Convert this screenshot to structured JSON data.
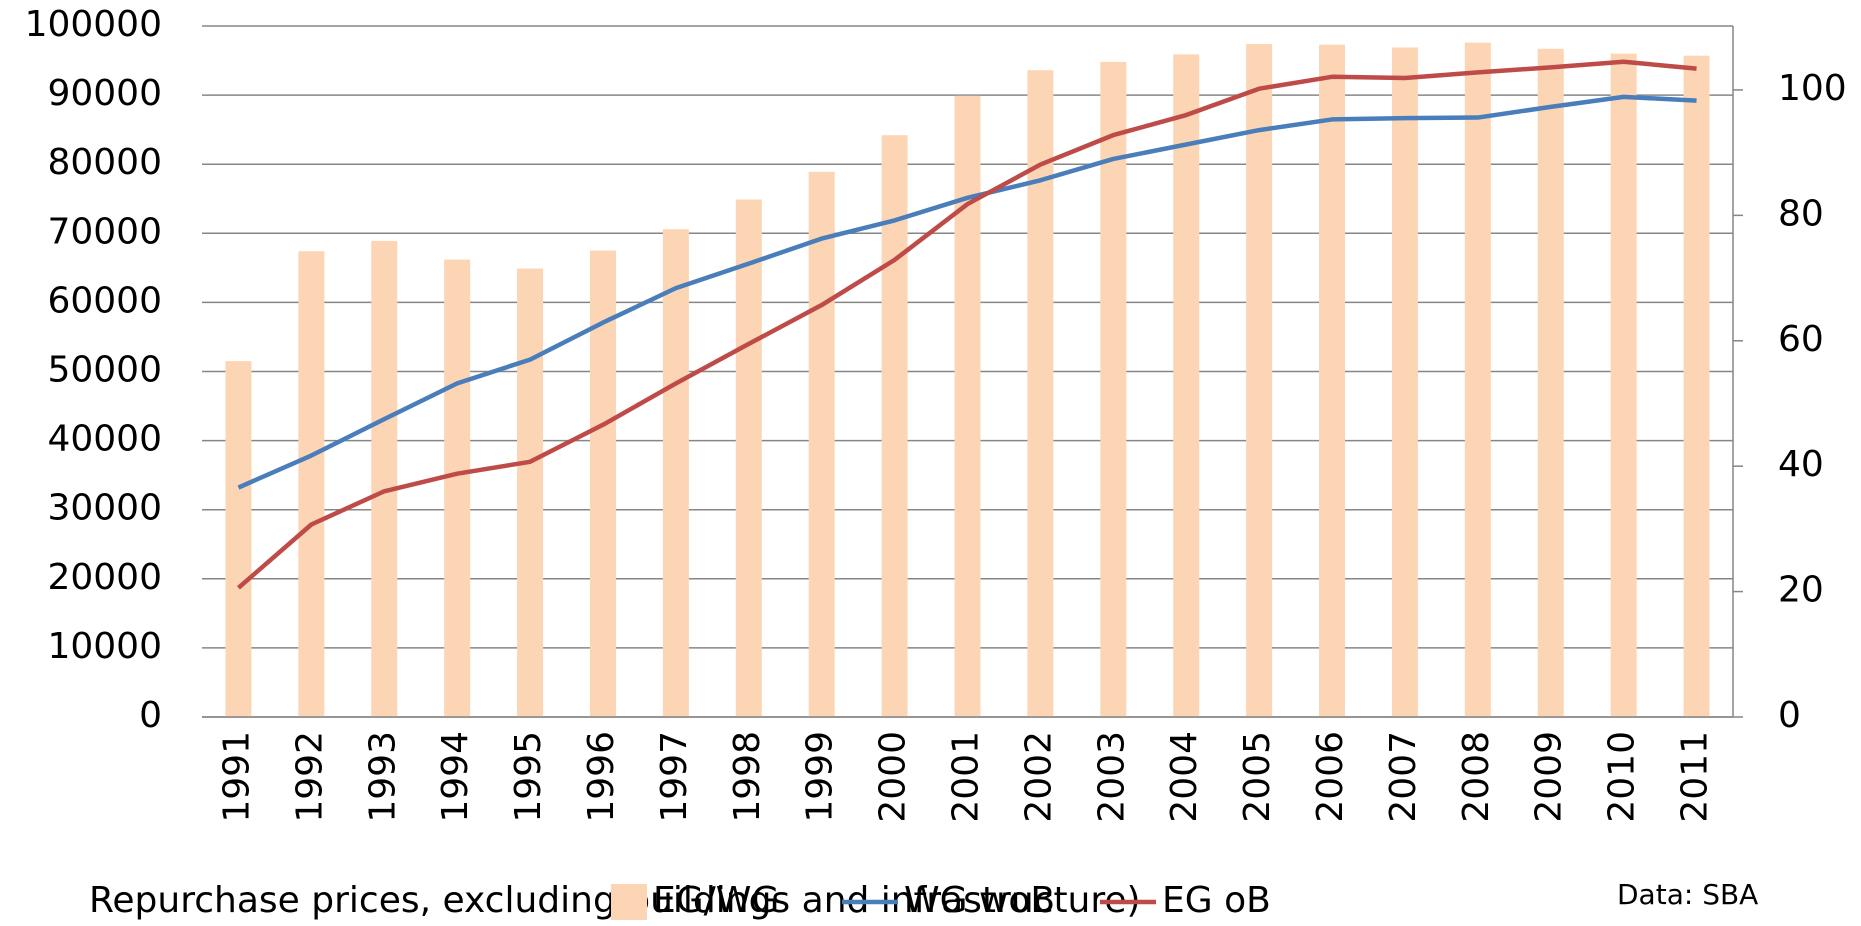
{
  "chart_data": {
    "type": "bar",
    "categories": [
      "1991",
      "1992",
      "1993",
      "1994",
      "1995",
      "1996",
      "1997",
      "1998",
      "1999",
      "2000",
      "2001",
      "2002",
      "2003",
      "2004",
      "2005",
      "2006",
      "2007",
      "2008",
      "2009",
      "2010",
      "2011"
    ],
    "series": [
      {
        "name": "EG/WG",
        "type": "bar",
        "axis": "y",
        "color": "#fcd5b5",
        "values": [
          51500,
          67400,
          68900,
          66200,
          64900,
          67500,
          70600,
          74900,
          78900,
          84200,
          89900,
          93600,
          94800,
          95900,
          97400,
          97300,
          96900,
          97600,
          96700,
          96000,
          95700
        ]
      },
      {
        "name": "WG woB",
        "type": "line",
        "axis": "y2",
        "color": "#4a7ebb",
        "values": [
          36.6,
          41.7,
          47.5,
          53.2,
          57.0,
          62.9,
          68.4,
          72.3,
          76.3,
          79.2,
          82.8,
          85.6,
          89.0,
          91.3,
          93.6,
          95.3,
          95.5,
          95.6,
          97.3,
          98.9,
          98.3
        ]
      },
      {
        "name": "EG oB",
        "type": "line",
        "axis": "y2",
        "color": "#be4b48",
        "values": [
          20.6,
          30.7,
          36.0,
          38.8,
          40.7,
          46.6,
          53.2,
          59.5,
          65.7,
          72.9,
          81.8,
          88.1,
          92.8,
          96.0,
          100.2,
          102.1,
          101.9,
          102.8,
          103.6,
          104.5,
          103.4
        ]
      }
    ],
    "ylim": [
      0,
      100000
    ],
    "yticks": [
      0,
      10000,
      20000,
      30000,
      40000,
      50000,
      60000,
      70000,
      80000,
      90000,
      100000
    ],
    "y2lim": [
      0,
      110.2
    ],
    "y2ticks": [
      0,
      20,
      40,
      60,
      80,
      100
    ],
    "grid": true,
    "note": "Repurchase prices, excluding buildings and infrastructure)",
    "source": "Data: SBA"
  }
}
